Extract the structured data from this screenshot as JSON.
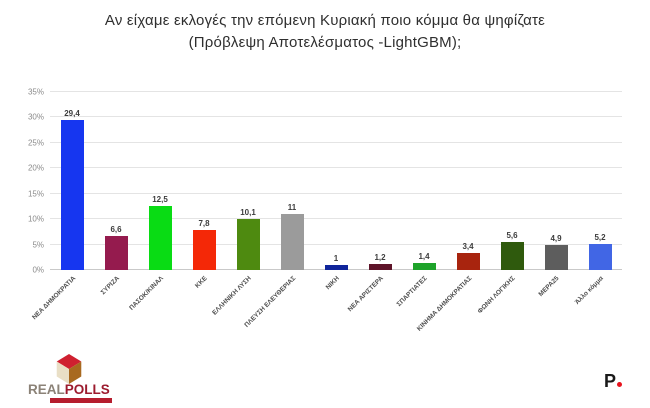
{
  "title": {
    "line1": "Αν είχαμε εκλογές την επόμενη Κυριακή ποιο κόμμα θα ψηφίζατε",
    "line2": "(Πρόβλεψη Αποτελέσματος -LightGBM);"
  },
  "chart_data": {
    "type": "bar",
    "title": "Αν είχαμε εκλογές την επόμενη Κυριακή ποιο κόμμα θα ψηφίζατε (Πρόβλεψη Αποτελέσματος -LightGBM);",
    "categories": [
      "ΝΕΑ ΔΗΜΟΚΡΑΤΙΑ",
      "ΣΥΡΙΖΑ",
      "ΠΑΣΟΚ/ΚΙΝΑΛ",
      "ΚΚΕ",
      "ΕΛΛΗΝΙΚΗ ΛΥΣΗ",
      "ΠΛΕΥΣΗ ΕΛΕΥΘΕΡΙΑΣ",
      "ΝΙΚΗ",
      "ΝΕΑ ΑΡΙΣΤΕΡΑ",
      "ΣΠΑΡΤΙΑΤΕΣ",
      "ΚΙΝΗΜΑ ΔΗΜΟΚΡΑΤΙΑΣ",
      "ΦΩΝΗ ΛΟΓΙΚΗΣ",
      "ΜΕΡΑ25",
      "Άλλο κόμμα"
    ],
    "values": [
      29.4,
      6.6,
      12.5,
      7.8,
      10.1,
      11,
      1,
      1.2,
      1.4,
      3.4,
      5.6,
      4.9,
      5.2
    ],
    "value_labels": [
      "29,4",
      "6,6",
      "12,5",
      "7,8",
      "10,1",
      "11",
      "1",
      "1,2",
      "1,4",
      "3,4",
      "5,6",
      "4,9",
      "5,2"
    ],
    "bar_colors": [
      "#1636f0",
      "#951b4e",
      "#09dc14",
      "#f42807",
      "#4e8a10",
      "#9b9b9b",
      "#10259b",
      "#5e1429",
      "#1ea32a",
      "#a8240e",
      "#2f5a0d",
      "#5d5d5d",
      "#4166e5"
    ],
    "xlabel": "",
    "ylabel": "",
    "ylim": [
      0,
      35
    ],
    "ytick_step": 5,
    "ytick_labels": [
      "0%",
      "5%",
      "10%",
      "15%",
      "20%",
      "25%",
      "30%",
      "35%"
    ],
    "grid": true,
    "legend": false
  },
  "footer": {
    "realpolls": {
      "real": "REAL",
      "polls": "POLLS",
      "strip_color": "#b61d2e",
      "cube_top_color": "#cf2030",
      "cube_left_color": "#e9dfc6",
      "cube_right_color": "#a8691f"
    },
    "protagon": {
      "letter": "P",
      "dot_color": "#e8131d"
    }
  }
}
